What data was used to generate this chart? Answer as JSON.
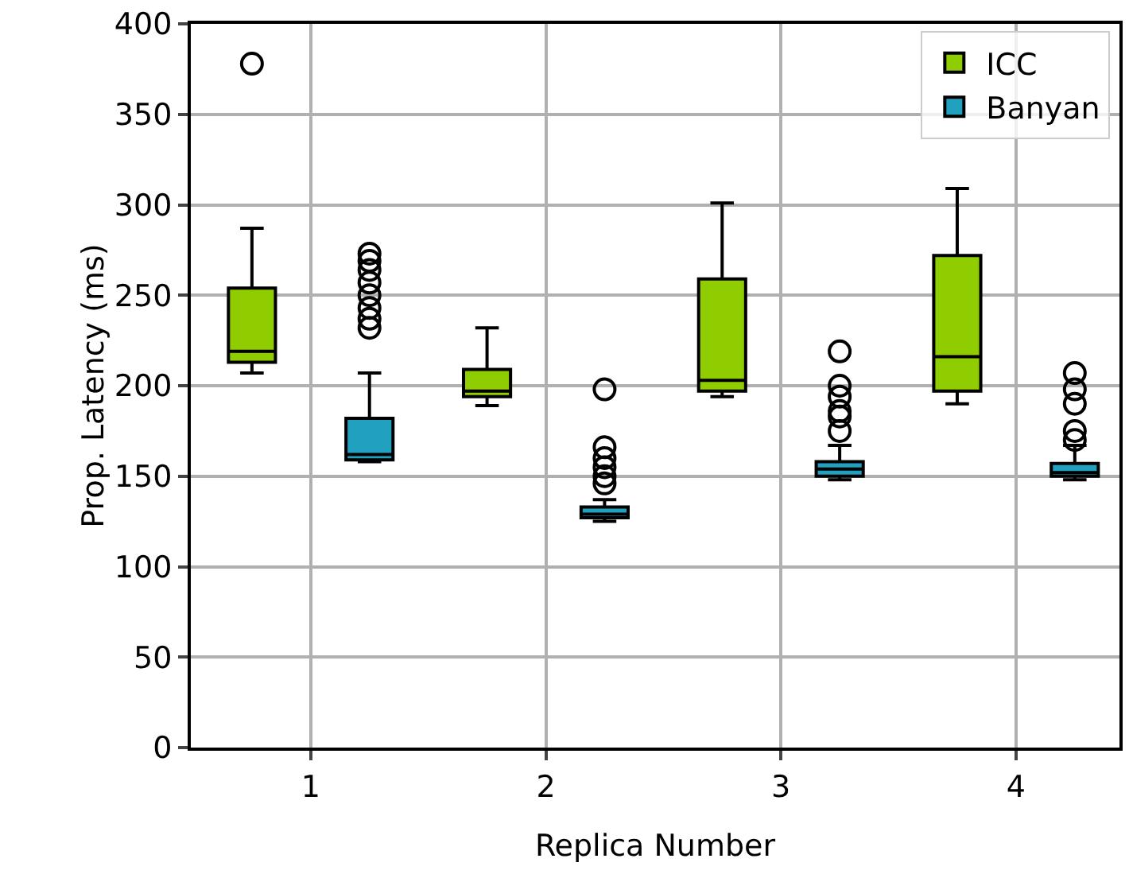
{
  "chart_data": {
    "type": "box",
    "xlabel": "Replica Number",
    "ylabel": "Prop. Latency (ms)",
    "categories": [
      "1",
      "2",
      "3",
      "4"
    ],
    "ylim": [
      0,
      400
    ],
    "yticks": [
      0,
      50,
      100,
      150,
      200,
      250,
      300,
      350,
      400
    ],
    "grid": true,
    "legend": "top right",
    "series": [
      {
        "name": "ICC",
        "color": "#8fcc00",
        "boxes": [
          {
            "low": 207,
            "q1": 213,
            "median": 219,
            "q3": 254,
            "high": 287,
            "outliers": [
              378
            ]
          },
          {
            "low": 189,
            "q1": 194,
            "median": 197,
            "q3": 209,
            "high": 232
          },
          {
            "low": 194,
            "q1": 197,
            "median": 203,
            "q3": 259,
            "high": 301
          },
          {
            "low": 190,
            "q1": 197,
            "median": 216,
            "q3": 272,
            "high": 309
          }
        ]
      },
      {
        "name": "Banyan",
        "color": "#22a0c0",
        "boxes": [
          {
            "low": 158,
            "q1": 159,
            "median": 162,
            "q3": 182,
            "high": 207,
            "outliers": [
              232,
              237,
              243,
              250,
              257,
              264,
              269,
              273
            ]
          },
          {
            "low": 125,
            "q1": 127,
            "median": 129,
            "q3": 133,
            "high": 137,
            "outliers": [
              146,
              150,
              155,
              160,
              166,
              198
            ]
          },
          {
            "low": 148,
            "q1": 150,
            "median": 154,
            "q3": 158,
            "high": 167,
            "outliers": [
              175,
              183,
              186,
              194,
              200,
              219
            ]
          },
          {
            "low": 148,
            "q1": 150,
            "median": 152,
            "q3": 157,
            "high": 167,
            "outliers": [
              170,
              175,
              190,
              198,
              207
            ]
          }
        ]
      }
    ]
  }
}
